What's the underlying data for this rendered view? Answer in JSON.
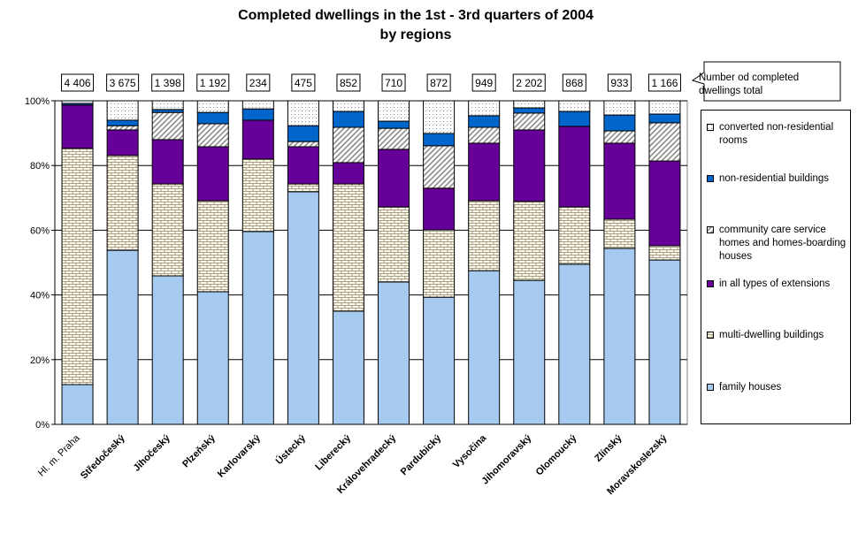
{
  "chart_data": {
    "type": "stacked-bar-100",
    "title": "Completed dwellings in the 1st - 3rd quarters of 2004",
    "subtitle": "by regions",
    "annotation": [
      "Number od completed",
      "dwellings total"
    ],
    "categories": [
      "Hl. m. Praha",
      "Středočeský",
      "Jihočeský",
      "Plzeňský",
      "Karlovarský",
      "Ústecký",
      "Liberecký",
      "Královehradecký",
      "Pardubický",
      "Vysočina",
      "Jihomoravský",
      "Olomoucký",
      "Zlínský",
      "Moravskoslezský"
    ],
    "totals": {
      "values": [
        4406,
        3675,
        1398,
        1192,
        234,
        475,
        852,
        710,
        872,
        949,
        2202,
        868,
        933,
        1166
      ],
      "value_labels": [
        "4 406",
        "3 675",
        "1 398",
        "1 192",
        "234",
        "475",
        "852",
        "710",
        "872",
        "949",
        "2 202",
        "868",
        "933",
        "1 166"
      ]
    },
    "series": [
      {
        "name": "family houses",
        "color": "#a6caf0",
        "pattern": "solid",
        "values": [
          12.3,
          53.8,
          45.9,
          41.0,
          59.6,
          71.9,
          35.0,
          44.0,
          39.3,
          47.5,
          44.5,
          49.5,
          54.4,
          50.8
        ]
      },
      {
        "name": "multi-dwelling buildings",
        "color": "#b0a890",
        "pattern": "brick",
        "values": [
          73.0,
          29.3,
          28.4,
          28.1,
          22.4,
          2.4,
          39.3,
          23.2,
          20.8,
          21.6,
          24.4,
          17.7,
          9.0,
          4.4
        ]
      },
      {
        "name": "in all types of extensions",
        "color": "#660099",
        "pattern": "solid",
        "values": [
          13.4,
          7.9,
          13.7,
          16.7,
          12.0,
          11.5,
          6.6,
          17.8,
          12.9,
          17.8,
          22.1,
          24.9,
          23.5,
          26.2
        ]
      },
      {
        "name": "community care service homes and homes-boarding houses",
        "color": "#999999",
        "pattern": "hatch",
        "values": [
          0,
          1.3,
          8.4,
          7.1,
          0,
          1.6,
          10.9,
          6.5,
          13.1,
          4.9,
          5.2,
          0,
          3.8,
          11.8
        ]
      },
      {
        "name": "non-residential buildings",
        "color": "#0066cc",
        "pattern": "solid",
        "values": [
          0.5,
          1.7,
          0.9,
          3.5,
          3.5,
          4.9,
          4.9,
          2.2,
          3.8,
          3.6,
          1.6,
          4.6,
          4.9,
          2.7
        ]
      },
      {
        "name": "converted non-residential rooms",
        "color": "#808080",
        "pattern": "dots",
        "values": [
          0.8,
          6.0,
          2.7,
          3.6,
          2.5,
          7.7,
          3.3,
          6.3,
          10.1,
          4.6,
          2.2,
          3.3,
          4.4,
          4.1
        ]
      }
    ],
    "ylim": [
      0,
      100
    ],
    "yticks": [
      {
        "value": 0,
        "label": "0%"
      },
      {
        "value": 20,
        "label": "20%"
      },
      {
        "value": 40,
        "label": "40%"
      },
      {
        "value": 60,
        "label": "60%"
      },
      {
        "value": 80,
        "label": "80%"
      },
      {
        "value": 100,
        "label": "100%"
      }
    ],
    "grid": true
  }
}
